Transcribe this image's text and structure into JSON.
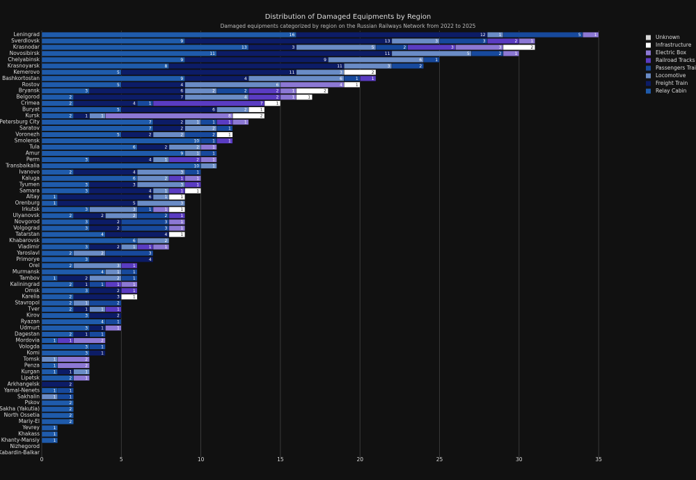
{
  "chart_data": {
    "type": "stacked-barh",
    "title": "Distribution of Damaged Equipments by Region",
    "subtitle": "Damaged equipments categorized by region on the Russian Railways Network from 2022 to 2025",
    "categories": [
      "Leningrad",
      "Sverdlovsk",
      "Krasnodar",
      "Novosibirsk",
      "Chelyabinsk",
      "Krasnoyarsk",
      "Kemerovo",
      "Bashkortostan",
      "Rostov",
      "Bryansk",
      "Belgorod",
      "Crimea",
      "Buryat",
      "Kursk",
      "St.Petersburg City",
      "Saratov",
      "Voronezh",
      "Smolensk",
      "Tula",
      "Amur",
      "Perm",
      "Transbaikalia",
      "Ivanovo",
      "Kaluga",
      "Tyumen",
      "Samara",
      "Altay",
      "Orenburg",
      "Irkutsk",
      "Ulyanovsk",
      "Novgorod",
      "Volgograd",
      "Tatarstan",
      "Khabarovsk",
      "Vladimir",
      "Yaroslavl",
      "Primorye",
      "Orel",
      "Murmansk",
      "Tambov",
      "Kaliningrad",
      "Omsk",
      "Karelia",
      "Stavropol",
      "Tver",
      "Kirov",
      "Ryazan",
      "Udmurt",
      "Dagestan",
      "Mordovia",
      "Vologda",
      "Komi",
      "Tomsk",
      "Penza",
      "Kurgan",
      "Lipetsk",
      "Arkhangelsk",
      "Yamal-Nenets",
      "Sakhalin",
      "Pskov",
      "Sakha (Yakutia)",
      "North Ossetia",
      "Mariy-El",
      "Yevrey",
      "Khakass",
      "Khanty-Mansiy",
      "Nizhegorod",
      "Kabardin-Balkar"
    ],
    "series": [
      {
        "name": "Relay Cabin",
        "color": "#1f5bab",
        "values": [
          16,
          9,
          13,
          11,
          9,
          8,
          5,
          9,
          5,
          3,
          2,
          2,
          5,
          2,
          7,
          7,
          5,
          10,
          6,
          9,
          3,
          10,
          2,
          6,
          3,
          3,
          1,
          1,
          3,
          2,
          3,
          3,
          4,
          6,
          3,
          2,
          3,
          2,
          4,
          1,
          2,
          3,
          2,
          2,
          2,
          3,
          4,
          3,
          2,
          1,
          3,
          3,
          0,
          1,
          1,
          2,
          0,
          1,
          0,
          2,
          2,
          2,
          2,
          1,
          1,
          1,
          0,
          0
        ]
      },
      {
        "name": "Freight Train",
        "color": "#0c1c66",
        "values": [
          12,
          13,
          3,
          11,
          9,
          11,
          11,
          4,
          4,
          6,
          7,
          4,
          6,
          1,
          2,
          2,
          2,
          0,
          2,
          0,
          4,
          0,
          4,
          0,
          3,
          4,
          6,
          5,
          0,
          2,
          2,
          2,
          4,
          0,
          2,
          0,
          4,
          0,
          0,
          2,
          1,
          2,
          3,
          0,
          1,
          2,
          0,
          1,
          1,
          0,
          0,
          1,
          0,
          0,
          1,
          0,
          2,
          0,
          0,
          0,
          0,
          0,
          0,
          0,
          0,
          0,
          0,
          0
        ]
      },
      {
        "name": "Locomotive",
        "color": "#6a8cc6",
        "values": [
          1,
          3,
          5,
          5,
          6,
          3,
          3,
          6,
          6,
          2,
          4,
          0,
          2,
          1,
          1,
          2,
          2,
          0,
          2,
          1,
          1,
          1,
          3,
          2,
          3,
          1,
          1,
          3,
          3,
          2,
          0,
          0,
          0,
          2,
          1,
          2,
          0,
          3,
          1,
          2,
          0,
          0,
          0,
          1,
          1,
          0,
          0,
          0,
          0,
          0,
          0,
          0,
          1,
          0,
          1,
          0,
          0,
          0,
          1,
          0,
          0,
          0,
          0,
          0,
          0,
          0,
          0,
          0
        ]
      },
      {
        "name": "Passengers Train",
        "color": "#17499c",
        "values": [
          5,
          3,
          2,
          2,
          1,
          2,
          0,
          1,
          0,
          2,
          0,
          1,
          0,
          0,
          1,
          1,
          2,
          1,
          0,
          1,
          0,
          0,
          1,
          0,
          0,
          0,
          0,
          0,
          1,
          2,
          3,
          3,
          0,
          0,
          0,
          3,
          0,
          0,
          1,
          1,
          1,
          0,
          0,
          2,
          0,
          0,
          1,
          0,
          1,
          0,
          1,
          0,
          0,
          0,
          0,
          0,
          0,
          1,
          1,
          0,
          0,
          0,
          0,
          0,
          0,
          0,
          0,
          0
        ]
      },
      {
        "name": "Railroad Tracks",
        "color": "#5a3cc2",
        "values": [
          0,
          2,
          3,
          0,
          0,
          0,
          0,
          1,
          0,
          2,
          2,
          7,
          0,
          0,
          1,
          0,
          0,
          1,
          0,
          0,
          2,
          0,
          0,
          1,
          1,
          1,
          0,
          0,
          0,
          1,
          0,
          0,
          0,
          0,
          1,
          0,
          0,
          1,
          0,
          0,
          1,
          1,
          0,
          0,
          1,
          0,
          0,
          0,
          0,
          1,
          0,
          0,
          0,
          0,
          0,
          0,
          0,
          0,
          0,
          0,
          0,
          0,
          0,
          0,
          0,
          0,
          0,
          0
        ]
      },
      {
        "name": "Electric Box",
        "color": "#8c78d4",
        "values": [
          1,
          1,
          3,
          1,
          0,
          0,
          0,
          0,
          4,
          1,
          1,
          0,
          0,
          8,
          1,
          0,
          0,
          0,
          1,
          0,
          1,
          0,
          0,
          1,
          0,
          0,
          0,
          0,
          1,
          0,
          1,
          1,
          0,
          0,
          1,
          0,
          0,
          0,
          0,
          0,
          1,
          0,
          0,
          0,
          0,
          0,
          0,
          1,
          0,
          2,
          0,
          0,
          2,
          2,
          0,
          1,
          0,
          0,
          0,
          0,
          0,
          0,
          0,
          0,
          0,
          0,
          0,
          0
        ]
      },
      {
        "name": "Infrastructure",
        "color": "#ffffff",
        "values": [
          0,
          0,
          2,
          0,
          0,
          0,
          2,
          0,
          1,
          2,
          1,
          1,
          1,
          2,
          0,
          0,
          1,
          0,
          0,
          0,
          0,
          0,
          0,
          0,
          0,
          1,
          1,
          0,
          1,
          0,
          0,
          0,
          1,
          0,
          0,
          0,
          0,
          0,
          0,
          0,
          0,
          0,
          1,
          0,
          0,
          0,
          0,
          0,
          0,
          0,
          0,
          0,
          0,
          0,
          0,
          0,
          0,
          0,
          0,
          0,
          0,
          0,
          0,
          0,
          0,
          0,
          0,
          0
        ]
      },
      {
        "name": "Unknown",
        "color": "#d9d9d9",
        "values": [
          0,
          0,
          0,
          0,
          0,
          0,
          0,
          0,
          0,
          0,
          0,
          0,
          0,
          0,
          0,
          0,
          0,
          0,
          0,
          0,
          0,
          0,
          0,
          0,
          0,
          0,
          0,
          0,
          0,
          0,
          0,
          0,
          0,
          0,
          0,
          0,
          0,
          0,
          0,
          0,
          0,
          0,
          0,
          0,
          0,
          0,
          0,
          0,
          0,
          0,
          0,
          0,
          0,
          0,
          0,
          0,
          0,
          0,
          0,
          0,
          0,
          0,
          0,
          0,
          0,
          0,
          0,
          0
        ]
      }
    ],
    "xlim": [
      0,
      36.6
    ],
    "xticks": [
      0,
      5,
      10,
      15,
      20,
      25,
      30,
      35
    ],
    "grid": true
  }
}
